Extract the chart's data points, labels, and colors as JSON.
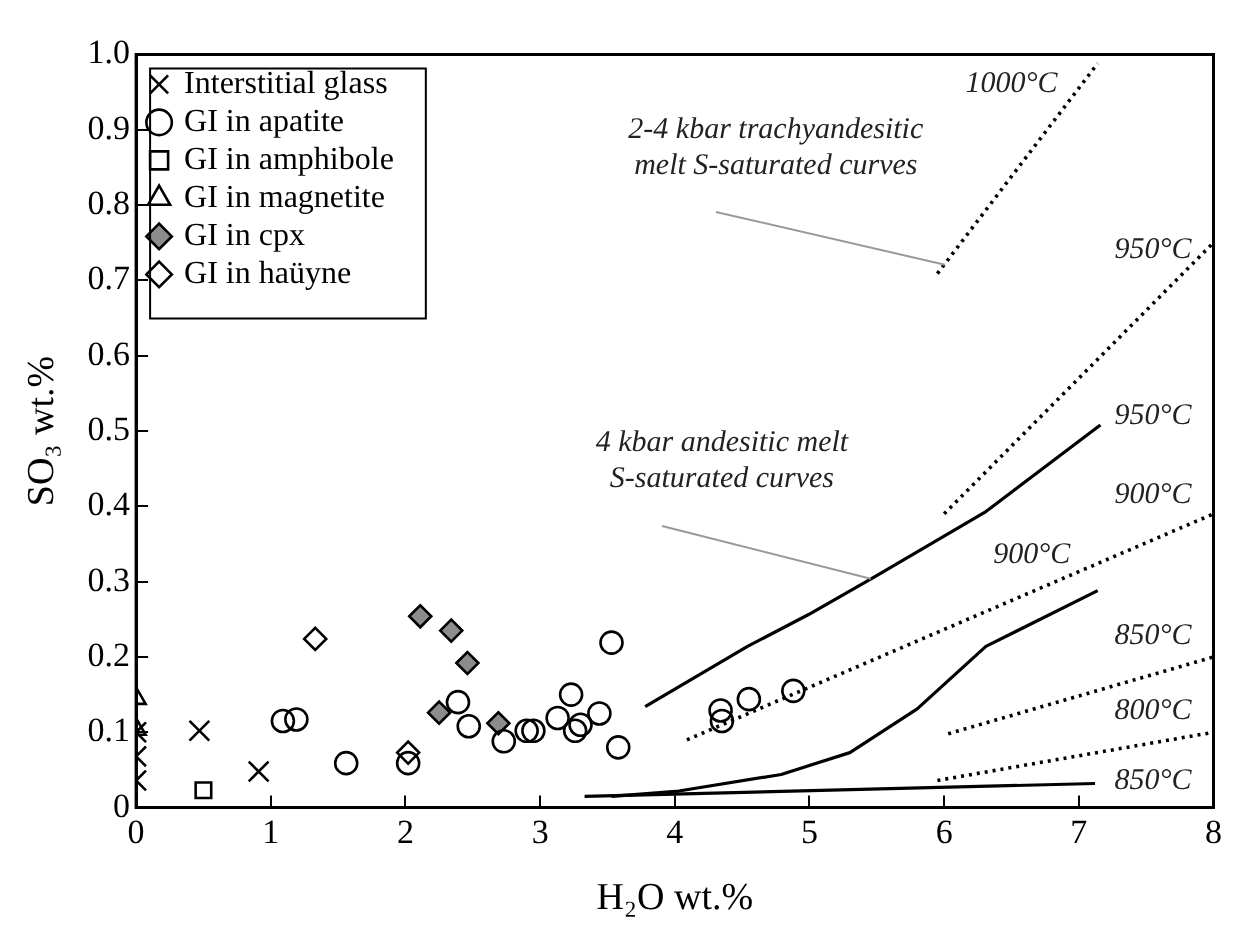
{
  "chart_data": {
    "type": "scatter",
    "xlabel": "H₂O wt.%",
    "ylabel": "SO₃ wt.%",
    "xlim": [
      0,
      8
    ],
    "xticks": [
      0,
      1,
      2,
      3,
      4,
      5,
      6,
      7,
      8
    ],
    "ylim": [
      0,
      1
    ],
    "yticks": [
      0,
      0.1,
      0.2,
      0.3,
      0.4,
      0.5,
      0.6,
      0.7,
      0.8,
      0.9,
      {
        "value": 1,
        "label": "1.0"
      }
    ],
    "grid": false,
    "legend": "top left",
    "series": [
      {
        "name": "GI in apatite",
        "color": "#000000",
        "marker": "circle",
        "x": [
          1.09,
          1.19,
          1.56,
          2.02,
          2.39,
          2.47,
          2.73,
          2.9,
          2.95,
          3.13,
          3.23,
          3.26,
          3.3,
          3.44,
          3.53,
          3.58,
          4.34,
          4.35,
          4.55,
          4.88
        ],
        "values": [
          0.115,
          0.117,
          0.059,
          0.059,
          0.14,
          0.108,
          0.088,
          0.102,
          0.102,
          0.119,
          0.15,
          0.102,
          0.11,
          0.125,
          0.219,
          0.08,
          0.129,
          0.115,
          0.144,
          0.155
        ]
      },
      {
        "name": "GI in amphibole",
        "color": "#000000",
        "marker": "square",
        "x": [
          0.5
        ],
        "values": [
          0.023
        ]
      },
      {
        "name": "GI in magnetite",
        "color": "#000000",
        "marker": "triangle",
        "x": [
          0,
          0
        ],
        "values": [
          0.145,
          0.104
        ]
      },
      {
        "name": "GI in cpx",
        "color": "#8c8c8c",
        "marker": "diamond",
        "x": [
          2.11,
          2.34,
          2.46,
          2.25,
          2.69
        ],
        "values": [
          0.254,
          0.235,
          0.192,
          0.126,
          0.112
        ]
      },
      {
        "name": "GI in haüyne",
        "color": "#000000",
        "marker": "diamond",
        "x": [
          1.33,
          2.02
        ],
        "values": [
          0.224,
          0.073
        ]
      },
      {
        "name": "Interstitial glass",
        "color": "#000000",
        "marker": "cross",
        "x": [
          0.47,
          0.91,
          0,
          0,
          0
        ],
        "values": [
          0.102,
          0.048,
          0.1,
          0.068,
          0.036
        ]
      },
      {
        "type": "line",
        "color": "#000000",
        "line_style": "solid",
        "marker": "none",
        "x": [
          3.78,
          4.54,
          4.99,
          5.48,
          6.31,
          7.16
        ],
        "values": [
          0.134,
          0.214,
          0.256,
          0.306,
          0.393,
          0.508
        ]
      },
      {
        "type": "line",
        "color": "#000000",
        "line_style": "solid",
        "marker": "none",
        "x": [
          3.53,
          4.03,
          4.79,
          5.3,
          5.8,
          6.31,
          7.14
        ],
        "values": [
          0.015,
          0.022,
          0.044,
          0.073,
          0.131,
          0.214,
          0.288
        ]
      },
      {
        "type": "line",
        "color": "#000000",
        "line_style": "solid",
        "marker": "none",
        "x": [
          3.33,
          7.12
        ],
        "values": [
          0.015,
          0.032
        ]
      },
      {
        "type": "line",
        "color": "#000000",
        "line_style": "dotted",
        "marker": "none",
        "x": [
          5.95,
          7.14
        ],
        "values": [
          0.709,
          0.988
        ]
      },
      {
        "type": "line",
        "color": "#000000",
        "line_style": "dotted",
        "marker": "none",
        "x": [
          6.0,
          8
        ],
        "values": [
          0.39,
          0.75
        ]
      },
      {
        "type": "line",
        "color": "#000000",
        "line_style": "dotted",
        "marker": "none",
        "x": [
          4.09,
          8
        ],
        "values": [
          0.09,
          0.39
        ]
      },
      {
        "type": "line",
        "color": "#000000",
        "line_style": "dotted",
        "marker": "none",
        "x": [
          6.03,
          8
        ],
        "values": [
          0.098,
          0.2
        ]
      },
      {
        "type": "line",
        "color": "#000000",
        "line_style": "dotted",
        "marker": "none",
        "x": [
          5.95,
          8
        ],
        "values": [
          0.036,
          0.1
        ]
      }
    ],
    "annotations": [
      "1000°C",
      {
        "text": "2-4 kbar trachyandesitic\nmelt S-saturated curves",
        "x": 6.0,
        "y": 0.72
      },
      "950°C",
      "950°C",
      {
        "text": "4 kbar andesitic melt\nS-saturated curves",
        "x": 5.45,
        "y": 0.305
      },
      "900°C",
      "900°C",
      "850°C",
      "800°C",
      "850°C"
    ]
  }
}
